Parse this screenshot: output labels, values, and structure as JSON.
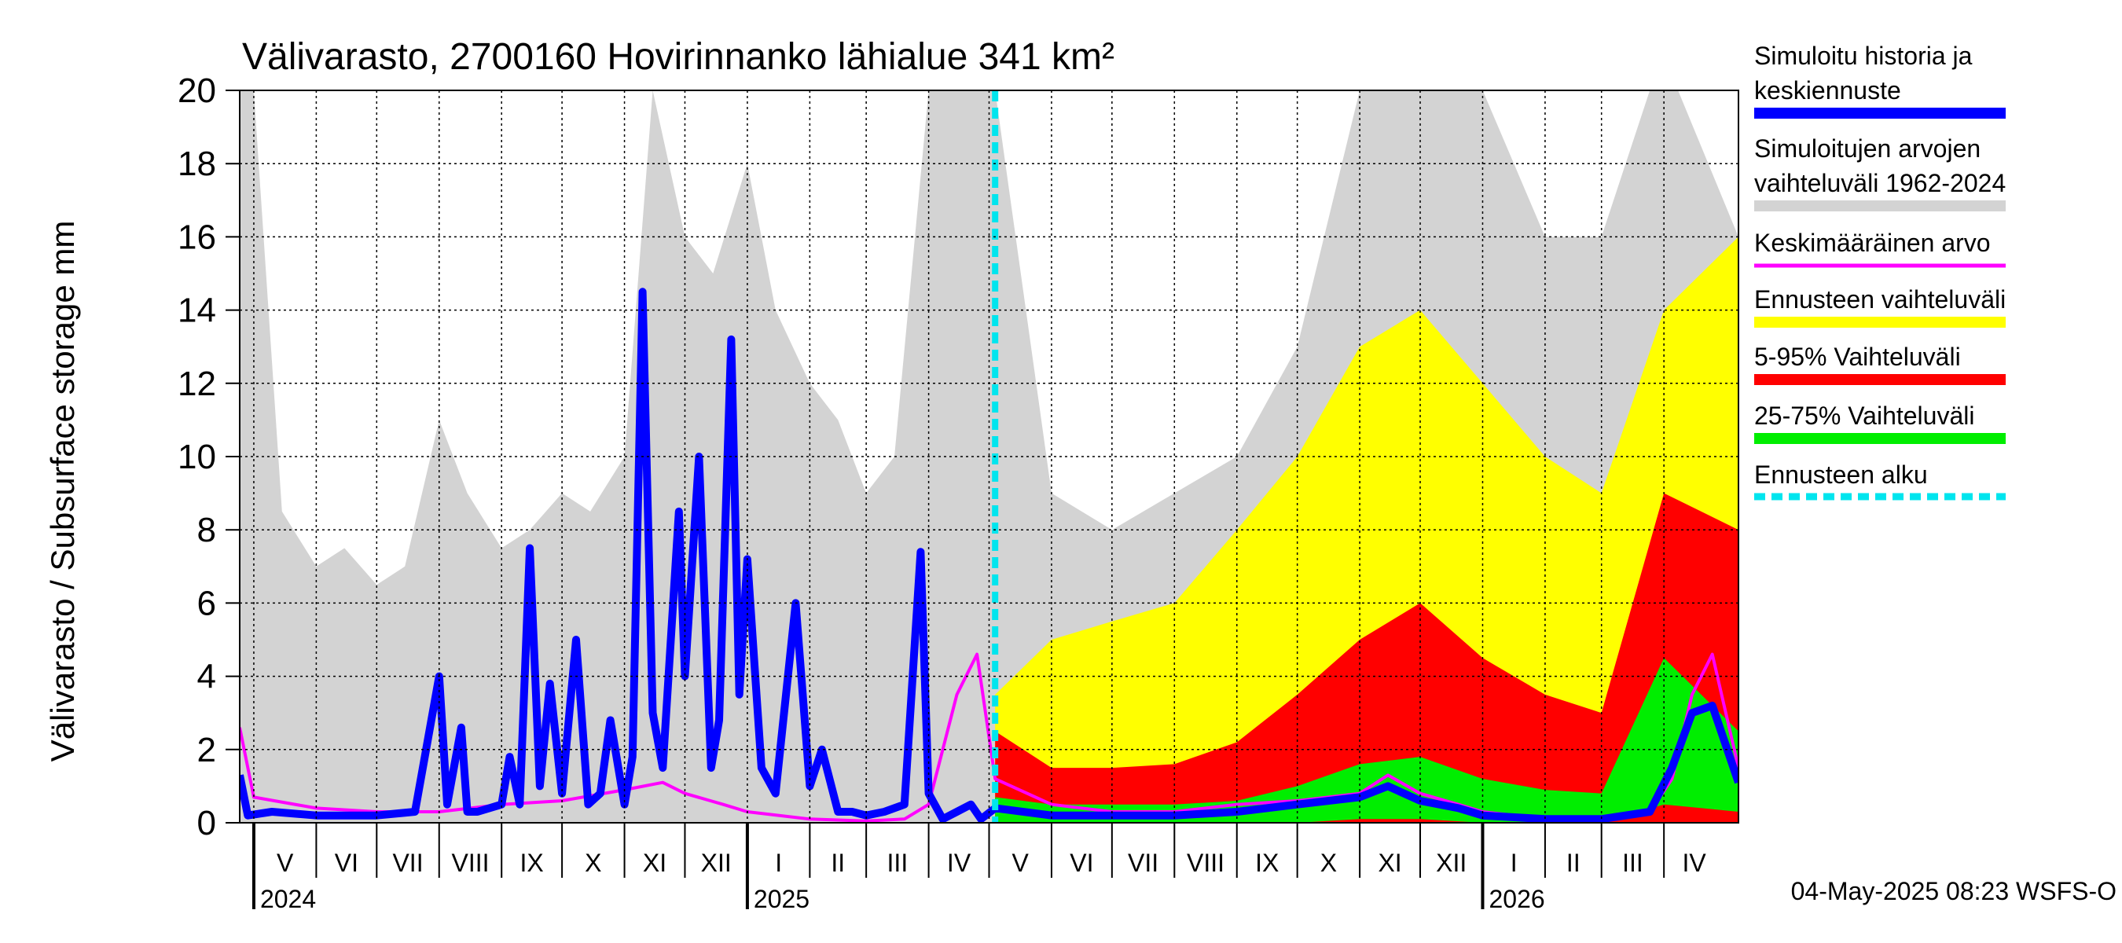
{
  "chart_data": {
    "type": "area",
    "title": "Välivarasto, 2700160 Hovirinnanko lähialue 341 km²",
    "ylabel": "Välivarasto / Subsurface storage  mm",
    "ylim": [
      0,
      20
    ],
    "yticks": [
      "0",
      "2",
      "4",
      "6",
      "8",
      "10",
      "12",
      "14",
      "16",
      "18",
      "20"
    ],
    "x_range": [
      "2024-04-24",
      "2026-05-08"
    ],
    "forecast_start": "2025-05-04",
    "grid": true,
    "legend_position": "right",
    "months": [
      {
        "label": "V",
        "start": "2024-05-01",
        "end": "2024-06-01"
      },
      {
        "label": "VI",
        "start": "2024-06-01",
        "end": "2024-07-01"
      },
      {
        "label": "VII",
        "start": "2024-07-01",
        "end": "2024-08-01"
      },
      {
        "label": "VIII",
        "start": "2024-08-01",
        "end": "2024-09-01"
      },
      {
        "label": "IX",
        "start": "2024-09-01",
        "end": "2024-10-01"
      },
      {
        "label": "X",
        "start": "2024-10-01",
        "end": "2024-11-01"
      },
      {
        "label": "XI",
        "start": "2024-11-01",
        "end": "2024-12-01"
      },
      {
        "label": "XII",
        "start": "2024-12-01",
        "end": "2025-01-01"
      },
      {
        "label": "I",
        "start": "2025-01-01",
        "end": "2025-02-01"
      },
      {
        "label": "II",
        "start": "2025-02-01",
        "end": "2025-03-01"
      },
      {
        "label": "III",
        "start": "2025-03-01",
        "end": "2025-04-01"
      },
      {
        "label": "IV",
        "start": "2025-04-01",
        "end": "2025-05-01"
      },
      {
        "label": "V",
        "start": "2025-05-01",
        "end": "2025-06-01"
      },
      {
        "label": "VI",
        "start": "2025-06-01",
        "end": "2025-07-01"
      },
      {
        "label": "VII",
        "start": "2025-07-01",
        "end": "2025-08-01"
      },
      {
        "label": "VIII",
        "start": "2025-08-01",
        "end": "2025-09-01"
      },
      {
        "label": "IX",
        "start": "2025-09-01",
        "end": "2025-10-01"
      },
      {
        "label": "X",
        "start": "2025-10-01",
        "end": "2025-11-01"
      },
      {
        "label": "XI",
        "start": "2025-11-01",
        "end": "2025-12-01"
      },
      {
        "label": "XII",
        "start": "2025-12-01",
        "end": "2026-01-01"
      },
      {
        "label": "I",
        "start": "2026-01-01",
        "end": "2026-02-01"
      },
      {
        "label": "II",
        "start": "2026-02-01",
        "end": "2026-03-01"
      },
      {
        "label": "III",
        "start": "2026-03-01",
        "end": "2026-04-01"
      },
      {
        "label": "IV",
        "start": "2026-04-01",
        "end": "2026-05-01"
      }
    ],
    "years": [
      {
        "label": "2024",
        "date": "2024-05-01"
      },
      {
        "label": "2025",
        "date": "2025-01-01"
      },
      {
        "label": "2026",
        "date": "2026-01-01"
      }
    ],
    "series": [
      {
        "name": "Simuloitujen arvojen vaihteluväli 1962-2024",
        "kind": "band",
        "color": "#d3d3d3",
        "x": [
          "2024-04-24",
          "2024-05-01",
          "2024-05-15",
          "2024-06-01",
          "2024-06-15",
          "2024-07-01",
          "2024-07-15",
          "2024-08-01",
          "2024-08-15",
          "2024-09-01",
          "2024-09-15",
          "2024-10-01",
          "2024-10-15",
          "2024-11-01",
          "2024-11-15",
          "2024-12-01",
          "2024-12-15",
          "2025-01-01",
          "2025-01-15",
          "2025-02-01",
          "2025-02-15",
          "2025-03-01",
          "2025-03-15",
          "2025-04-01",
          "2025-04-15",
          "2025-05-04",
          "2025-06-01",
          "2025-07-01",
          "2025-08-01",
          "2025-09-01",
          "2025-10-01",
          "2025-11-01",
          "2025-12-01",
          "2026-01-01",
          "2026-02-01",
          "2026-03-01",
          "2026-03-25",
          "2026-04-08",
          "2026-05-08"
        ],
        "low": [
          0,
          0,
          0,
          0,
          0,
          0,
          0,
          0,
          0,
          0,
          0,
          0,
          0,
          0,
          0,
          0,
          0,
          0,
          0,
          0,
          0,
          0,
          0,
          0,
          0,
          0,
          0,
          0,
          0,
          0,
          0,
          0,
          0,
          0,
          0,
          0,
          0,
          0,
          0
        ],
        "high": [
          20,
          20,
          8.5,
          7,
          7.5,
          6.5,
          7,
          11,
          9,
          7.5,
          8,
          9,
          8.5,
          10,
          20,
          16,
          15,
          18,
          14,
          12,
          11,
          9,
          10,
          20,
          20,
          20,
          9,
          8,
          9,
          10,
          13,
          20,
          20,
          20,
          16,
          16,
          20,
          20,
          16
        ]
      },
      {
        "name": "Ennusteen vaihteluväli",
        "kind": "band",
        "color": "#ffff00",
        "x": [
          "2025-05-04",
          "2025-06-01",
          "2025-07-01",
          "2025-08-01",
          "2025-09-01",
          "2025-10-01",
          "2025-11-01",
          "2025-12-01",
          "2026-01-01",
          "2026-02-01",
          "2026-03-01",
          "2026-04-01",
          "2026-05-08"
        ],
        "low": [
          0,
          0,
          0,
          0,
          0,
          0,
          0,
          0,
          0,
          0,
          0,
          0,
          0
        ],
        "high": [
          3.5,
          5,
          5.5,
          6,
          8,
          10,
          13,
          14,
          12,
          10,
          9,
          14,
          16
        ]
      },
      {
        "name": "5-95% Vaihteluväli",
        "kind": "band",
        "color": "#ff0000",
        "x": [
          "2025-05-04",
          "2025-06-01",
          "2025-07-01",
          "2025-08-01",
          "2025-09-01",
          "2025-10-01",
          "2025-11-01",
          "2025-12-01",
          "2026-01-01",
          "2026-02-01",
          "2026-03-01",
          "2026-04-01",
          "2026-05-08"
        ],
        "low": [
          0,
          0,
          0,
          0,
          0,
          0,
          0,
          0,
          0,
          0,
          0,
          0,
          0
        ],
        "high": [
          2.5,
          1.5,
          1.5,
          1.6,
          2.2,
          3.5,
          5,
          6,
          4.5,
          3.5,
          3,
          9,
          8
        ]
      },
      {
        "name": "25-75% Vaihteluväli",
        "kind": "band",
        "color": "#00ee00",
        "x": [
          "2025-05-04",
          "2025-06-01",
          "2025-07-01",
          "2025-08-01",
          "2025-09-01",
          "2025-10-01",
          "2025-11-01",
          "2025-12-01",
          "2026-01-01",
          "2026-02-01",
          "2026-03-01",
          "2026-04-01",
          "2026-05-08"
        ],
        "low": [
          0,
          0,
          0,
          0,
          0,
          0,
          0.1,
          0.1,
          0,
          0,
          0,
          0.5,
          0.3
        ],
        "high": [
          0.7,
          0.5,
          0.5,
          0.5,
          0.6,
          1,
          1.6,
          1.8,
          1.2,
          0.9,
          0.8,
          4.5,
          2.5
        ]
      },
      {
        "name": "Keskimääräinen arvo",
        "kind": "line",
        "color": "#ff00ff",
        "x": [
          "2024-04-24",
          "2024-05-01",
          "2024-06-01",
          "2024-07-01",
          "2024-08-01",
          "2024-09-01",
          "2024-10-01",
          "2024-11-01",
          "2024-11-20",
          "2024-12-01",
          "2024-12-20",
          "2025-01-01",
          "2025-02-01",
          "2025-03-01",
          "2025-03-20",
          "2025-04-01",
          "2025-04-15",
          "2025-04-25",
          "2025-05-04",
          "2025-06-01",
          "2025-07-01",
          "2025-08-01",
          "2025-09-01",
          "2025-10-01",
          "2025-11-01",
          "2025-11-15",
          "2025-12-01",
          "2025-12-20",
          "2026-01-01",
          "2026-02-01",
          "2026-03-01",
          "2026-03-25",
          "2026-04-05",
          "2026-04-15",
          "2026-04-25",
          "2026-05-08"
        ],
        "y": [
          2.6,
          0.7,
          0.4,
          0.3,
          0.3,
          0.5,
          0.6,
          0.9,
          1.1,
          0.8,
          0.5,
          0.3,
          0.1,
          0.05,
          0.1,
          0.5,
          3.5,
          4.6,
          1.2,
          0.5,
          0.3,
          0.3,
          0.5,
          0.6,
          0.8,
          1.3,
          0.8,
          0.5,
          0.3,
          0.1,
          0.05,
          0.3,
          1.2,
          3.5,
          4.6,
          1.5
        ]
      },
      {
        "name": "Simuloitu historia ja keskiennuste",
        "kind": "line",
        "color": "#0000ff",
        "x": [
          "2024-04-24",
          "2024-04-28",
          "2024-05-10",
          "2024-06-01",
          "2024-07-01",
          "2024-07-20",
          "2024-08-01",
          "2024-08-05",
          "2024-08-12",
          "2024-08-15",
          "2024-08-20",
          "2024-09-01",
          "2024-09-05",
          "2024-09-10",
          "2024-09-15",
          "2024-09-20",
          "2024-09-25",
          "2024-10-01",
          "2024-10-08",
          "2024-10-14",
          "2024-10-20",
          "2024-10-25",
          "2024-11-01",
          "2024-11-05",
          "2024-11-10",
          "2024-11-15",
          "2024-11-20",
          "2024-11-28",
          "2024-12-01",
          "2024-12-08",
          "2024-12-14",
          "2024-12-18",
          "2024-12-24",
          "2024-12-28",
          "2025-01-01",
          "2025-01-08",
          "2025-01-15",
          "2025-01-25",
          "2025-02-01",
          "2025-02-07",
          "2025-02-15",
          "2025-02-22",
          "2025-03-01",
          "2025-03-10",
          "2025-03-20",
          "2025-03-28",
          "2025-04-01",
          "2025-04-08",
          "2025-04-15",
          "2025-04-22",
          "2025-04-27",
          "2025-05-04",
          "2025-06-01",
          "2025-07-01",
          "2025-08-01",
          "2025-09-01",
          "2025-10-01",
          "2025-11-01",
          "2025-11-15",
          "2025-12-01",
          "2025-12-20",
          "2026-01-01",
          "2026-02-01",
          "2026-03-01",
          "2026-03-25",
          "2026-04-05",
          "2026-04-15",
          "2026-04-25",
          "2026-05-08"
        ],
        "y": [
          1.3,
          0.2,
          0.3,
          0.2,
          0.2,
          0.3,
          4.0,
          0.5,
          2.6,
          0.3,
          0.3,
          0.5,
          1.8,
          0.5,
          7.5,
          1.0,
          3.8,
          0.8,
          5.0,
          0.5,
          0.8,
          2.8,
          0.5,
          1.8,
          14.5,
          3.0,
          1.5,
          8.5,
          4.0,
          10.0,
          1.5,
          2.8,
          13.2,
          3.5,
          7.2,
          1.5,
          0.8,
          6.0,
          1.0,
          2.0,
          0.3,
          0.3,
          0.2,
          0.3,
          0.5,
          7.4,
          0.8,
          0.1,
          0.3,
          0.5,
          0.1,
          0.4,
          0.2,
          0.2,
          0.2,
          0.3,
          0.5,
          0.7,
          1.0,
          0.6,
          0.4,
          0.2,
          0.1,
          0.1,
          0.3,
          1.5,
          3.0,
          3.2,
          1.1
        ]
      }
    ],
    "legend": [
      {
        "label": "Simuloitu historia ja",
        "label2": "keskiennuste",
        "color": "#0000ff",
        "style": "solid"
      },
      {
        "label": "Simuloitujen arvojen",
        "label2": "vaihteluväli 1962-2024",
        "color": "#d3d3d3",
        "style": "solid"
      },
      {
        "label": "Keskimääräinen arvo",
        "label2": "",
        "color": "#ff00ff",
        "style": "thin"
      },
      {
        "label": "Ennusteen vaihteluväli",
        "label2": "",
        "color": "#ffff00",
        "style": "solid"
      },
      {
        "label": "5-95% Vaihteluväli",
        "label2": "",
        "color": "#ff0000",
        "style": "solid"
      },
      {
        "label": "25-75% Vaihteluväli",
        "label2": "",
        "color": "#00ee00",
        "style": "solid"
      },
      {
        "label": "Ennusteen alku",
        "label2": "",
        "color": "#00e5ee",
        "style": "dashed"
      }
    ],
    "footer": "04-May-2025 08:23 WSFS-O"
  }
}
